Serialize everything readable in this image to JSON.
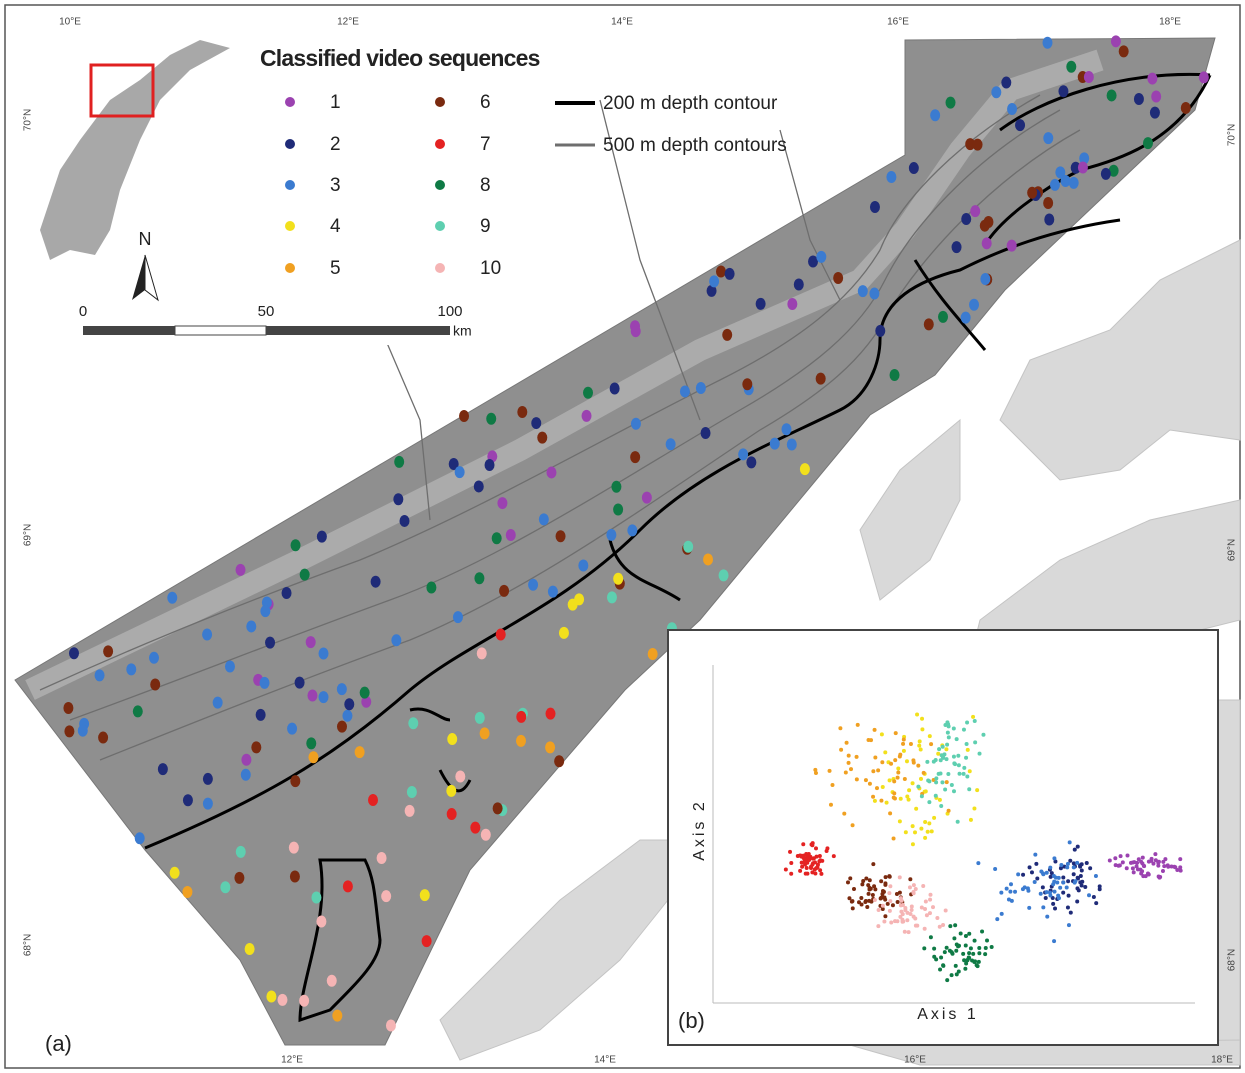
{
  "map_a": {
    "panel_label": "(a)",
    "legend": {
      "title": "Classified video sequences",
      "classes": [
        {
          "label": "1",
          "color": "#9b42b0"
        },
        {
          "label": "2",
          "color": "#1f2b78"
        },
        {
          "label": "3",
          "color": "#3b7bd0"
        },
        {
          "label": "4",
          "color": "#f2e01c"
        },
        {
          "label": "5",
          "color": "#f0a021"
        },
        {
          "label": "6",
          "color": "#7a2a0f"
        },
        {
          "label": "7",
          "color": "#e42222"
        },
        {
          "label": "8",
          "color": "#0f7a45"
        },
        {
          "label": "9",
          "color": "#5ecfb0"
        },
        {
          "label": "10",
          "color": "#f5b4b4"
        }
      ]
    },
    "contours": [
      {
        "label": "200 m depth contour",
        "color": "#000000"
      },
      {
        "label": "500 m depth contours",
        "color": "#6e6e6e"
      }
    ],
    "north": "N",
    "scale_bar": {
      "labels": [
        "0",
        "50",
        "100"
      ],
      "unit": "km"
    },
    "longitude_top": [
      "10°E",
      "12°E",
      "14°E",
      "16°E",
      "18°E"
    ],
    "longitude_bottom": [
      "12°E",
      "14°E",
      "16°E",
      "18°E"
    ],
    "latitude_left": [
      "70°N",
      "69°N",
      "68°N"
    ],
    "latitude_right": [
      "70°N",
      "69°N",
      "68°N"
    ]
  },
  "ordination_b": {
    "panel_label": "(b)",
    "x_axis": "Axis 1",
    "y_axis": "Axis 2"
  }
}
